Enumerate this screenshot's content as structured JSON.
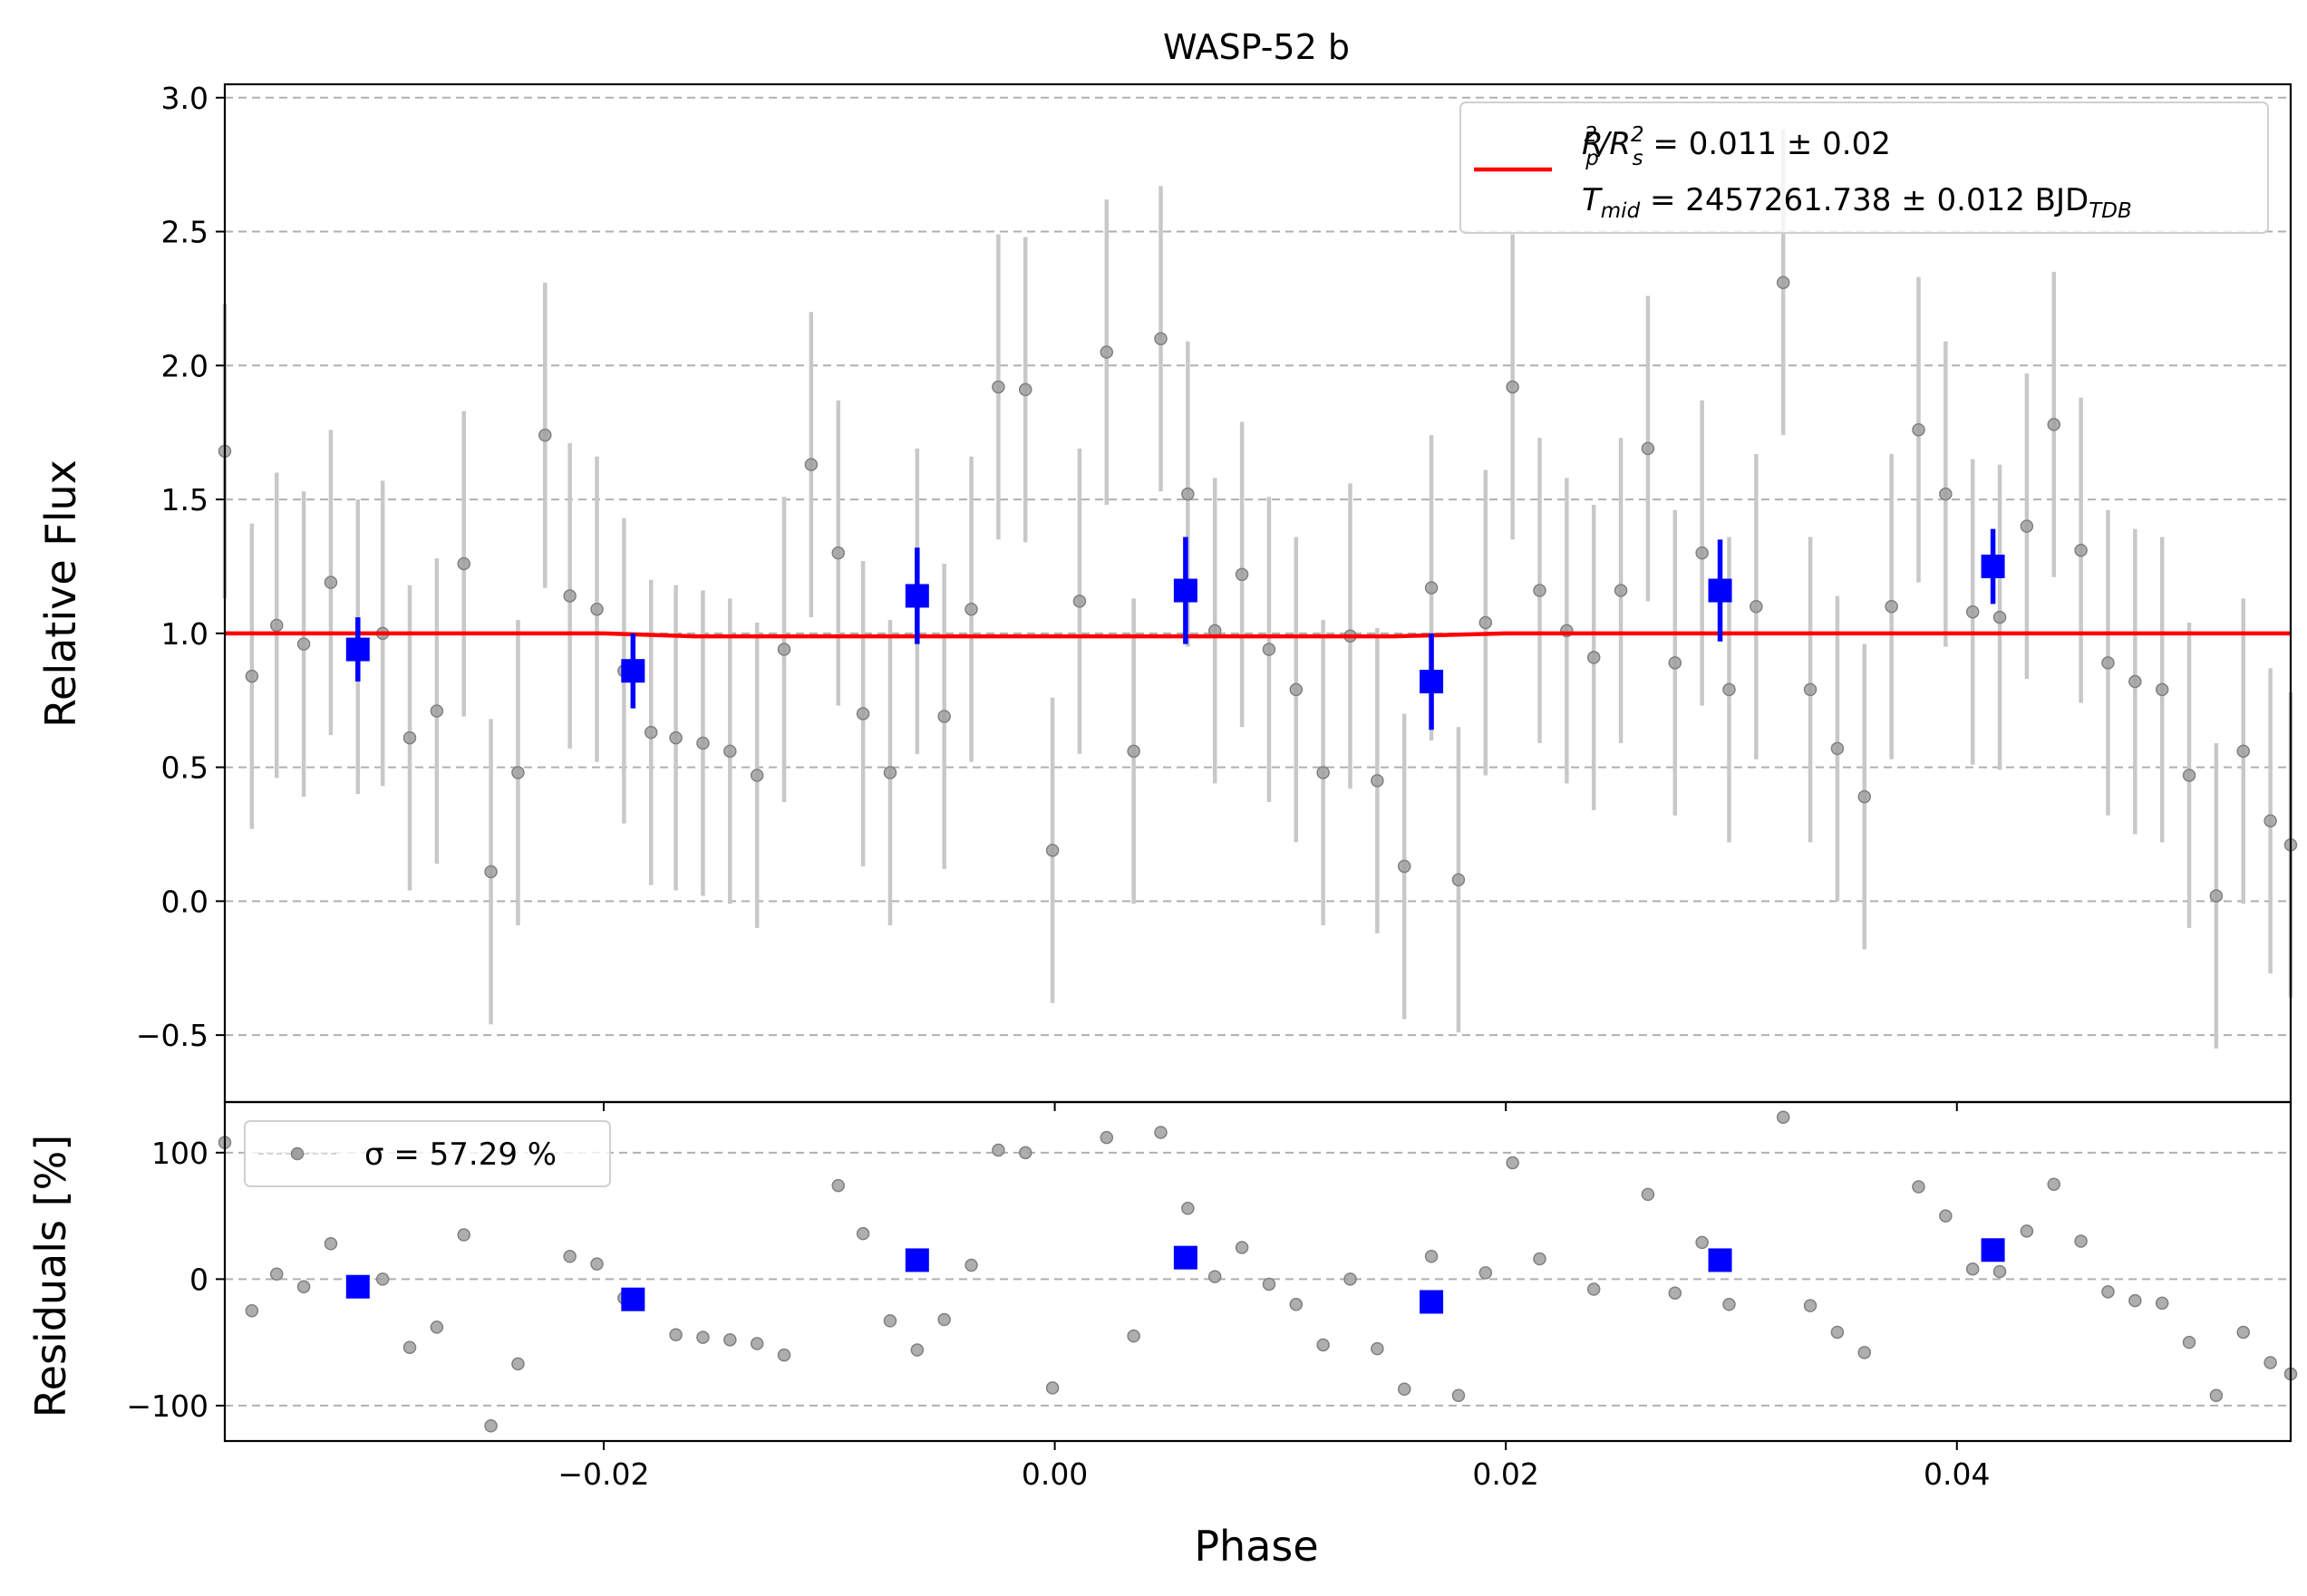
{
  "chart_data": {
    "type": "scatter",
    "title": "WASP-52 b",
    "xlabel": "Phase",
    "xlim": [
      -0.0368,
      0.0548
    ],
    "xticks": [
      -0.02,
      0.0,
      0.02,
      0.04
    ],
    "xtick_labels": [
      "−0.02",
      "0.00",
      "0.02",
      "0.04"
    ],
    "grid": "horizontal dashed",
    "colors": {
      "data": "#808080",
      "errorbar": "#c8c8c8",
      "binned": "#0000ff",
      "model": "#ff0000"
    },
    "panels": [
      {
        "name": "flux",
        "ylabel": "Relative Flux",
        "ylim": [
          -0.75,
          3.05
        ],
        "yticks": [
          -0.5,
          0.0,
          0.5,
          1.0,
          1.5,
          2.0,
          2.5,
          3.0
        ],
        "ytick_labels": [
          "−0.5",
          "0.0",
          "0.5",
          "1.0",
          "1.5",
          "2.0",
          "2.5",
          "3.0"
        ],
        "legend": {
          "placement": "upper right",
          "rp_prefix": "R",
          "rp_sub": "p",
          "rp_sup": "2",
          "rs_prefix": "/R",
          "rs_sub": "s",
          "rs_sup": "2",
          "rp_value": " = 0.011 ± 0.02",
          "t_prefix": "T",
          "t_sub": "mid",
          "t_value": " = 2457261.738 ± 0.012 BJD",
          "t_unit_sub": "TDB"
        },
        "data": {
          "x": [
            -0.0368,
            -0.0356,
            -0.0345,
            -0.0333,
            -0.0321,
            -0.0309,
            -0.0298,
            -0.0286,
            -0.0274,
            -0.0262,
            -0.025,
            -0.0238,
            -0.0226,
            -0.0215,
            -0.0203,
            -0.0191,
            -0.0179,
            -0.0168,
            -0.0156,
            -0.0144,
            -0.0132,
            -0.012,
            -0.0108,
            -0.0096,
            -0.0085,
            -0.0073,
            -0.0061,
            -0.0049,
            -0.0037,
            -0.0025,
            -0.0013,
            -0.0001,
            0.0011,
            0.0023,
            0.0035,
            0.0047,
            0.0059,
            0.0071,
            0.0083,
            0.0095,
            0.0107,
            0.0119,
            0.0131,
            0.0143,
            0.0155,
            0.0167,
            0.0179,
            0.0191,
            0.0203,
            0.0215,
            0.0227,
            0.0239,
            0.0251,
            0.0263,
            0.0275,
            0.0287,
            0.0299,
            0.0311,
            0.0323,
            0.0335,
            0.0347,
            0.0359,
            0.0371,
            0.0383,
            0.0395,
            0.0407,
            0.0419,
            0.0431,
            0.0443,
            0.0455,
            0.0467,
            0.0479,
            0.0491,
            0.0503,
            0.0515,
            0.0527,
            0.0539,
            0.0548
          ],
          "y": [
            1.68,
            0.84,
            1.03,
            0.96,
            1.19,
            0.95,
            1.0,
            0.61,
            0.71,
            1.26,
            0.11,
            0.48,
            1.74,
            1.14,
            1.09,
            0.86,
            0.63,
            0.61,
            0.59,
            0.56,
            0.47,
            0.94,
            1.63,
            1.3,
            0.7,
            0.48,
            1.12,
            0.69,
            1.09,
            1.92,
            1.91,
            0.19,
            1.12,
            2.05,
            0.56,
            2.1,
            1.52,
            1.01,
            1.22,
            0.94,
            0.79,
            0.48,
            0.99,
            0.45,
            0.13,
            1.17,
            0.08,
            1.04,
            1.92,
            1.16,
            1.01,
            0.91,
            1.16,
            1.69,
            0.89,
            1.3,
            0.79,
            1.1,
            2.31,
            0.79,
            0.57,
            0.39,
            1.1,
            1.76,
            1.52,
            1.08,
            1.06,
            1.4,
            1.78,
            1.31,
            0.89,
            0.82,
            0.79,
            0.47,
            0.02,
            0.56,
            0.3,
            0.21
          ],
          "err": [
            0.55,
            0.57,
            0.57,
            0.57,
            0.57,
            0.55,
            0.57,
            0.57,
            0.57,
            0.57,
            0.57,
            0.57,
            0.57,
            0.57,
            0.57,
            0.57,
            0.57,
            0.57,
            0.57,
            0.57,
            0.57,
            0.57,
            0.57,
            0.57,
            0.57,
            0.57,
            0.57,
            0.57,
            0.57,
            0.57,
            0.57,
            0.57,
            0.57,
            0.57,
            0.57,
            0.57,
            0.57,
            0.57,
            0.57,
            0.57,
            0.57,
            0.57,
            0.57,
            0.57,
            0.57,
            0.57,
            0.57,
            0.57,
            0.57,
            0.57,
            0.57,
            0.57,
            0.57,
            0.57,
            0.57,
            0.57,
            0.57,
            0.57,
            0.57,
            0.57,
            0.57,
            0.57,
            0.57,
            0.57,
            0.57,
            0.57,
            0.57,
            0.57,
            0.57,
            0.57,
            0.57,
            0.57,
            0.57,
            0.57,
            0.57,
            0.57,
            0.57,
            0.57
          ]
        },
        "binned": {
          "x": [
            -0.0309,
            -0.0187,
            -0.0061,
            0.0058,
            0.0167,
            0.0295,
            0.0416
          ],
          "y": [
            0.94,
            0.86,
            1.14,
            1.16,
            0.82,
            1.16,
            1.25
          ],
          "err": [
            0.12,
            0.14,
            0.18,
            0.2,
            0.18,
            0.19,
            0.14
          ]
        },
        "model": {
          "x": [
            -0.0368,
            -0.02,
            -0.016,
            0.0,
            0.015,
            0.02,
            0.0548
          ],
          "y": [
            1.0,
            1.0,
            0.989,
            0.989,
            0.989,
            1.0,
            1.0
          ]
        }
      },
      {
        "name": "residuals",
        "ylabel": "Residuals [%]",
        "ylim": [
          -128,
          140
        ],
        "yticks": [
          -100,
          0,
          100
        ],
        "ytick_labels": [
          "−100",
          "0",
          "100"
        ],
        "legend": {
          "placement": "upper left",
          "label": "σ = 57.29 %"
        },
        "data": {
          "x": [
            -0.0368,
            -0.0356,
            -0.0345,
            -0.0333,
            -0.0321,
            -0.0298,
            -0.0286,
            -0.0274,
            -0.0262,
            -0.025,
            -0.0238,
            -0.0215,
            -0.0203,
            -0.0191,
            -0.0168,
            -0.0156,
            -0.0144,
            -0.0132,
            -0.012,
            -0.0096,
            -0.0085,
            -0.0073,
            -0.0061,
            -0.0049,
            -0.0037,
            -0.0025,
            -0.0013,
            -0.0001,
            0.0023,
            0.0035,
            0.0047,
            0.0059,
            0.0071,
            0.0083,
            0.0095,
            0.0107,
            0.0119,
            0.0131,
            0.0143,
            0.0155,
            0.0167,
            0.0179,
            0.0191,
            0.0203,
            0.0215,
            0.0239,
            0.0263,
            0.0275,
            0.0287,
            0.0299,
            0.0323,
            0.0335,
            0.0347,
            0.0359,
            0.0383,
            0.0395,
            0.0407,
            0.0419,
            0.0431,
            0.0443,
            0.0455,
            0.0467,
            0.0479,
            0.0491,
            0.0503,
            0.0515,
            0.0527,
            0.0539,
            0.0548
          ],
          "y": [
            108,
            -25,
            4,
            -6,
            28,
            0,
            -54,
            -38,
            35,
            -116,
            -67,
            18,
            12,
            -15,
            -44,
            -46,
            -48,
            -51,
            -60,
            74,
            36,
            -33,
            -56,
            -32,
            11,
            102,
            100,
            -86,
            112,
            -45,
            116,
            56,
            2,
            25,
            -4,
            -20,
            -52,
            0,
            -55,
            -87,
            18,
            -92,
            5,
            92,
            16,
            -8,
            67,
            -11,
            29,
            -20,
            128,
            -21,
            -42,
            -58,
            73,
            50,
            8,
            6,
            38,
            75,
            30,
            -10,
            -17,
            -19,
            -50,
            -92,
            -42,
            -66,
            -75
          ]
        },
        "binned": {
          "x": [
            -0.0309,
            -0.0187,
            -0.0061,
            0.0058,
            0.0167,
            0.0295,
            0.0416
          ],
          "y": [
            -6,
            -16,
            15,
            17,
            -18,
            15,
            23
          ]
        }
      }
    ]
  }
}
